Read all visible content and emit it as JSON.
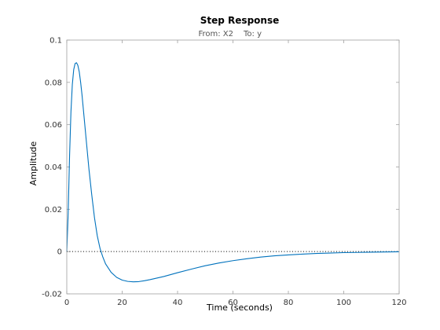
{
  "chart_data": {
    "type": "line",
    "title": "Step Response",
    "subtitle_from": "From: X2",
    "subtitle_to": "To: y",
    "xlabel": "Time (seconds)",
    "ylabel": "Amplitude",
    "xlim": [
      0,
      120
    ],
    "ylim": [
      -0.02,
      0.1
    ],
    "x_ticks": [
      0,
      20,
      40,
      60,
      80,
      100,
      120
    ],
    "x_tick_labels": [
      "0",
      "20",
      "40",
      "60",
      "80",
      "100",
      "120"
    ],
    "y_ticks": [
      -0.02,
      0,
      0.02,
      0.04,
      0.06,
      0.08,
      0.1
    ],
    "y_tick_labels": [
      "-0.02",
      "0",
      "0.02",
      "0.04",
      "0.06",
      "0.08",
      "0.1"
    ],
    "grid": false,
    "reference_line": {
      "y": 0,
      "style": "dotted"
    },
    "series": [
      {
        "color": "#0072bd",
        "x": [
          0,
          0.5,
          1,
          1.5,
          2,
          2.5,
          3,
          3.5,
          4,
          4.5,
          5,
          5.5,
          6,
          7,
          8,
          9,
          10,
          11,
          12,
          13,
          14,
          16,
          18,
          20,
          22,
          24,
          26,
          28,
          30,
          35,
          40,
          45,
          50,
          55,
          60,
          65,
          70,
          75,
          80,
          85,
          90,
          95,
          100,
          105,
          110,
          115,
          120
        ],
        "y": [
          0,
          0.018,
          0.045,
          0.066,
          0.079,
          0.086,
          0.0889,
          0.0893,
          0.088,
          0.085,
          0.08,
          0.074,
          0.067,
          0.053,
          0.039,
          0.027,
          0.016,
          0.0075,
          0.0015,
          -0.0025,
          -0.0058,
          -0.0098,
          -0.0122,
          -0.0135,
          -0.0141,
          -0.0143,
          -0.0142,
          -0.0138,
          -0.0133,
          -0.0118,
          -0.01,
          -0.0083,
          -0.0067,
          -0.0054,
          -0.0043,
          -0.0034,
          -0.0026,
          -0.002,
          -0.0016,
          -0.0012,
          -0.0009,
          -0.0007,
          -0.0005,
          -0.0004,
          -0.0003,
          -0.0002,
          -0.0001
        ]
      }
    ]
  }
}
